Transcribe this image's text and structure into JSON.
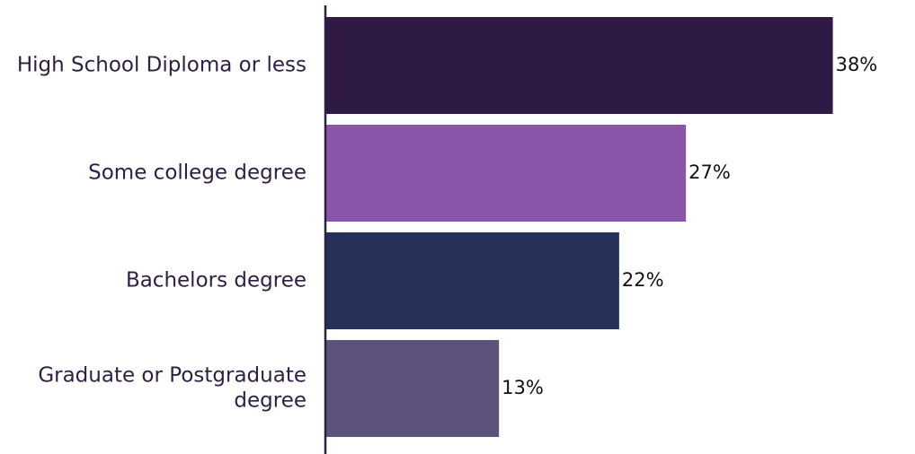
{
  "chart_data": {
    "type": "bar",
    "orientation": "horizontal",
    "categories": [
      "High School Diploma or less",
      "Some college degree",
      "Bachelors degree",
      "Graduate or Postgraduate degree"
    ],
    "category_lines": [
      [
        "High School Diploma or less"
      ],
      [
        "Some college degree"
      ],
      [
        "Bachelors degree"
      ],
      [
        "Graduate or Postgraduate",
        "degree"
      ]
    ],
    "values": [
      38,
      27,
      22,
      13
    ],
    "value_labels": [
      "38%",
      "27%",
      "22%",
      "13%"
    ],
    "colors": [
      "#2e1a45",
      "#8b55aa",
      "#26315a",
      "#5d527c"
    ],
    "xlim": [
      0,
      40
    ],
    "grid": false,
    "legend": "none"
  }
}
